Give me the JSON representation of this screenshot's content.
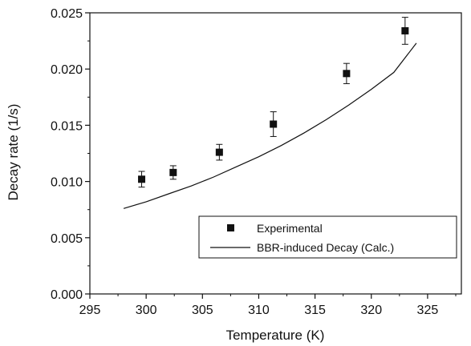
{
  "chart_data": {
    "type": "scatter",
    "title": "",
    "xlabel": "Temperature (K)",
    "ylabel": "Decay rate (1/s)",
    "xlim": [
      295,
      328
    ],
    "ylim": [
      0,
      0.025
    ],
    "x_ticks": [
      "295",
      "300",
      "305",
      "310",
      "315",
      "320",
      "325"
    ],
    "y_ticks": [
      "0.000",
      "0.005",
      "0.010",
      "0.015",
      "0.020",
      "0.025"
    ],
    "grid": false,
    "legend_position": "bottom-right",
    "series": [
      {
        "name": "Experimental",
        "type": "scatter",
        "marker": "square",
        "color": "#111111",
        "x": [
          299.6,
          302.4,
          306.5,
          311.3,
          317.8,
          323.0
        ],
        "y": [
          0.0102,
          0.0108,
          0.0126,
          0.0151,
          0.0196,
          0.0234
        ],
        "y_err": [
          0.0007,
          0.0006,
          0.0007,
          0.0011,
          0.0009,
          0.0012
        ]
      },
      {
        "name": "BBR-induced Decay (Calc.)",
        "type": "line",
        "color": "#111111",
        "x": [
          298,
          300,
          302,
          304,
          306,
          308,
          310,
          312,
          314,
          316,
          318,
          320,
          322,
          324
        ],
        "y": [
          0.0076,
          0.0082,
          0.0089,
          0.0096,
          0.0104,
          0.0113,
          0.0122,
          0.0132,
          0.0143,
          0.0155,
          0.0168,
          0.0182,
          0.0197,
          0.0223
        ]
      }
    ]
  }
}
